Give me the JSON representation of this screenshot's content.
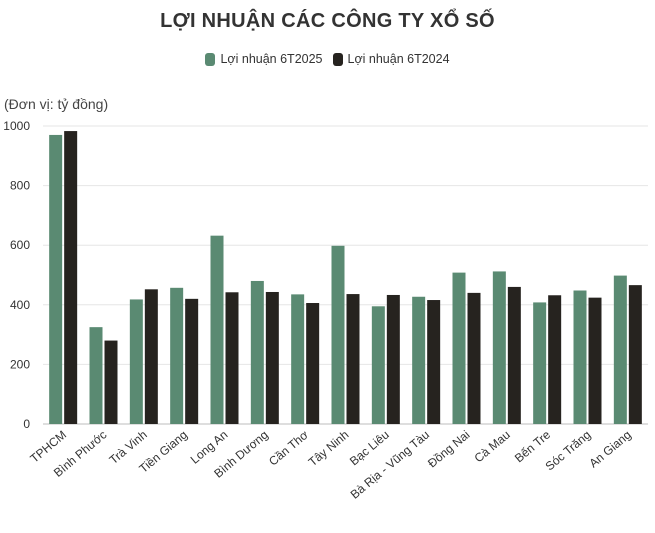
{
  "chart_data": {
    "type": "bar",
    "title": "LỢI NHUẬN CÁC CÔNG TY XỔ SỐ",
    "unit_label": "(Đơn vị: tỷ đồng)",
    "categories": [
      "TPHCM",
      "Bình Phước",
      "Trà Vinh",
      "Tiền Giang",
      "Long An",
      "Bình Dương",
      "Cần Thơ",
      "Tây Ninh",
      "Bạc Liêu",
      "Bà Rịa - Vũng Tàu",
      "Đồng Nai",
      "Cà Mau",
      "Bến Tre",
      "Sóc Trăng",
      "An Giang"
    ],
    "series": [
      {
        "name": "Lợi nhuận 6T2025",
        "color": "#5a8a72",
        "values": [
          970,
          325,
          418,
          457,
          632,
          480,
          435,
          598,
          395,
          427,
          508,
          512,
          408,
          448,
          498
        ]
      },
      {
        "name": "Lợi nhuận 6T2024",
        "color": "#26231f",
        "values": [
          983,
          280,
          452,
          420,
          442,
          443,
          406,
          436,
          433,
          416,
          440,
          460,
          432,
          424,
          466
        ]
      }
    ],
    "ylim": [
      0,
      1000
    ],
    "yticks": [
      0,
      200,
      400,
      600,
      800,
      1000
    ],
    "grid": true,
    "legend_position": "top"
  }
}
